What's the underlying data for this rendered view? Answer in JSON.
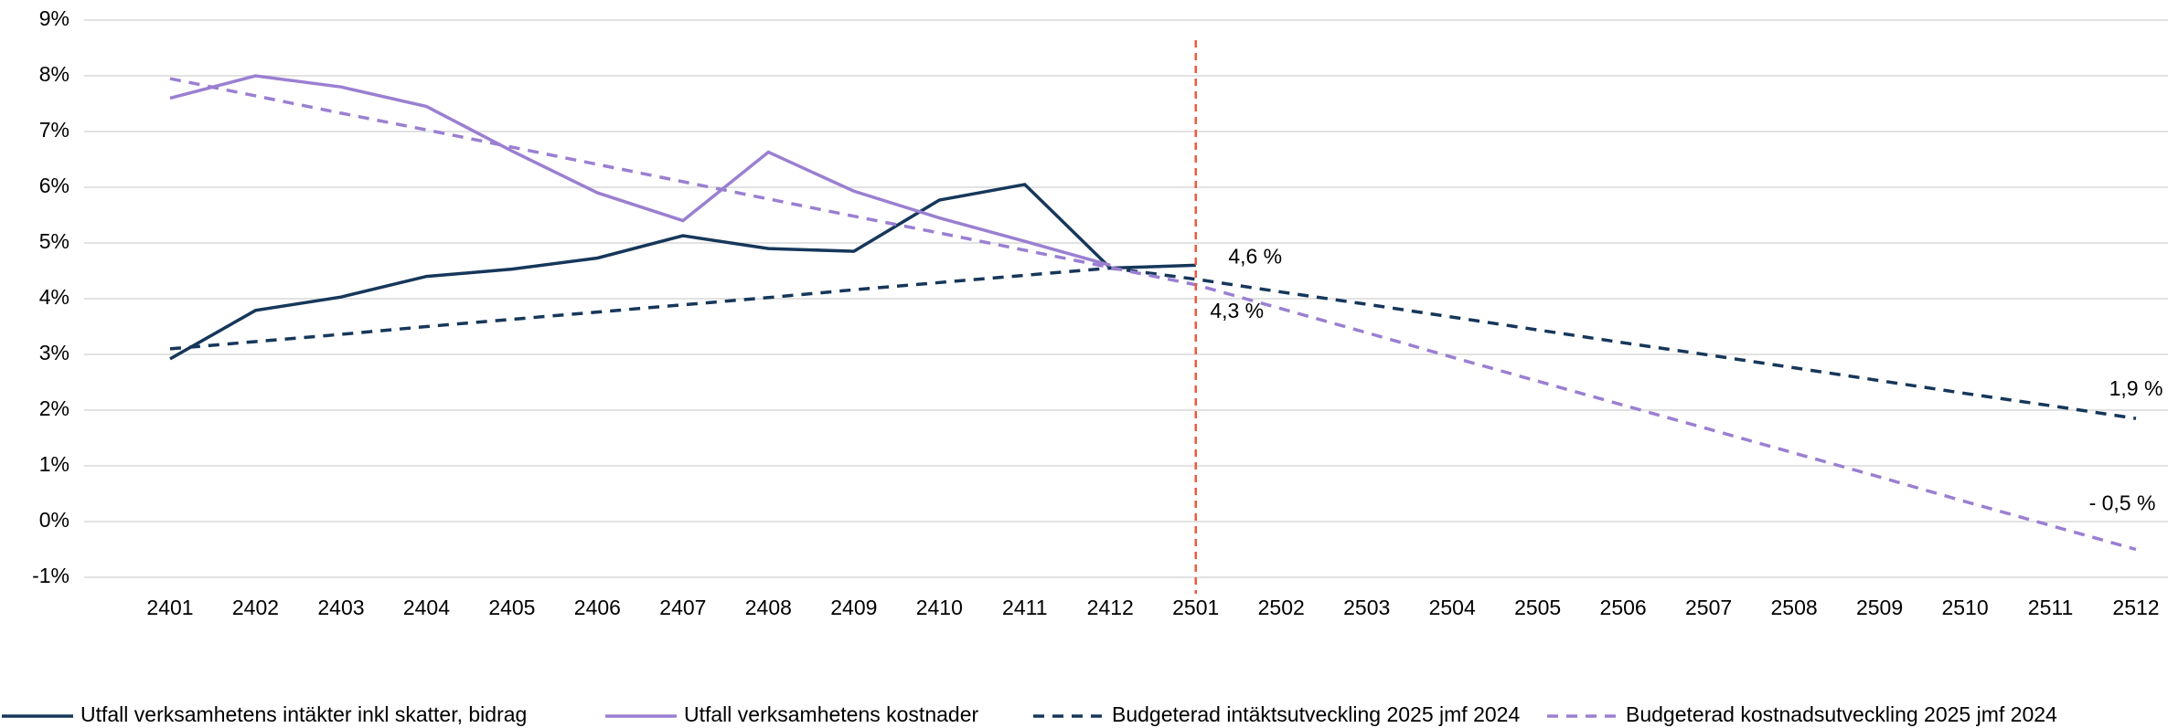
{
  "chart_data": {
    "type": "line",
    "categories": [
      "2401",
      "2402",
      "2403",
      "2404",
      "2405",
      "2406",
      "2407",
      "2408",
      "2409",
      "2410",
      "2411",
      "2412",
      "2501",
      "2502",
      "2503",
      "2504",
      "2505",
      "2506",
      "2507",
      "2508",
      "2509",
      "2510",
      "2511",
      "2512"
    ],
    "series": [
      {
        "name": "Utfall verksamhetens intäkter inkl skatter, bidrag",
        "color": "#16375a",
        "dash": false,
        "values": [
          2.92,
          3.79,
          4.03,
          4.4,
          4.53,
          4.73,
          5.13,
          4.9,
          4.85,
          5.77,
          6.05,
          4.55,
          4.6,
          null,
          null,
          null,
          null,
          null,
          null,
          null,
          null,
          null,
          null,
          null
        ]
      },
      {
        "name": "Utfall verksamhetens kostnader",
        "color": "#9a7fd1",
        "dash": false,
        "values": [
          7.6,
          8.0,
          7.8,
          7.45,
          6.65,
          5.9,
          5.4,
          6.63,
          5.93,
          5.45,
          5.03,
          4.6,
          null,
          null,
          null,
          null,
          null,
          null,
          null,
          null,
          null,
          null,
          null,
          null
        ]
      },
      {
        "name": "Budgeterad intäktsutveckling 2025 jmf 2024",
        "color": "#16375a",
        "dash": true,
        "values": [
          3.1,
          3.23,
          3.36,
          3.5,
          3.63,
          3.76,
          3.89,
          4.02,
          4.16,
          4.29,
          4.42,
          4.55,
          4.35,
          4.12,
          3.9,
          3.67,
          3.44,
          3.21,
          2.99,
          2.76,
          2.53,
          2.3,
          2.08,
          1.85
        ]
      },
      {
        "name": "Budgeterad kostnadsutveckling 2025 jmf 2024",
        "color": "#9a7fd1",
        "dash": true,
        "values": [
          7.95,
          7.64,
          7.33,
          7.03,
          6.72,
          6.41,
          6.1,
          5.79,
          5.48,
          5.18,
          4.87,
          4.56,
          4.25,
          3.82,
          3.39,
          2.95,
          2.52,
          2.09,
          1.66,
          1.23,
          0.8,
          0.36,
          -0.07,
          -0.5
        ]
      }
    ],
    "annotations": [
      "4,6 %",
      "4,3 %",
      "1,9 %",
      "- 0,5  %"
    ],
    "reference_line": {
      "category": "2501",
      "color": "#f0583c"
    },
    "ylim": [
      -1,
      9
    ],
    "yticks": [
      {
        "value": -1,
        "label": "-1%"
      },
      {
        "value": 0,
        "label": "0%"
      },
      {
        "value": 1,
        "label": "1%"
      },
      {
        "value": 2,
        "label": "2%"
      },
      {
        "value": 3,
        "label": "3%"
      },
      {
        "value": 4,
        "label": "4%"
      },
      {
        "value": 5,
        "label": "5%"
      },
      {
        "value": 6,
        "label": "6%"
      },
      {
        "value": 7,
        "label": "7%"
      },
      {
        "value": 8,
        "label": "8%"
      },
      {
        "value": 9,
        "label": "9%"
      }
    ],
    "grid": true,
    "legend": "bottom"
  }
}
